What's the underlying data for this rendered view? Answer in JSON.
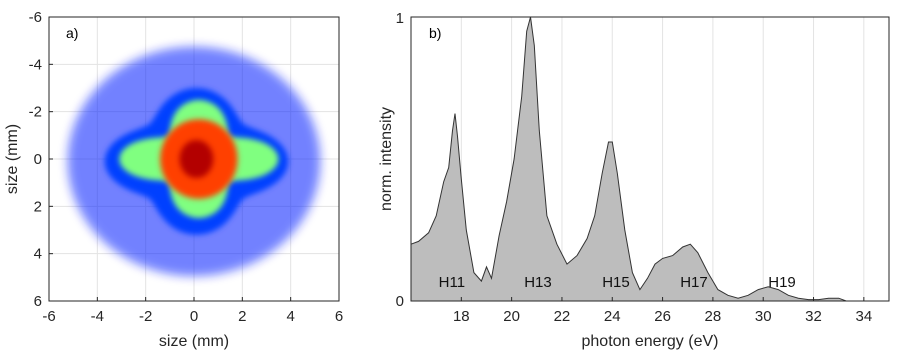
{
  "chart_data": [
    {
      "type": "heatmap",
      "panel_label": "a)",
      "xlabel": "size (mm)",
      "ylabel": "size (mm)",
      "xlim": [
        -6,
        6
      ],
      "ylim": [
        -6,
        6
      ],
      "y_reversed": true,
      "xticks": [
        "-6",
        "-4",
        "-2",
        "0",
        "2",
        "4",
        "6"
      ],
      "yticks": [
        "-6",
        "-4",
        "-2",
        "0",
        "2",
        "4",
        "6"
      ],
      "grid": true,
      "colormap": [
        "#ffffff",
        "#0000ff",
        "#00ffff",
        "#ffff00",
        "#ff0000",
        "#800000"
      ],
      "layers": [
        {
          "level": 0.12,
          "center": [
            0.0,
            0.1
          ],
          "outer_radius_x": 5.5,
          "outer_radius_y": 5.1
        },
        {
          "level": 0.35,
          "center": [
            0.1,
            0.1
          ],
          "star_arm_x": 3.8,
          "star_arm_y": 3.1
        },
        {
          "level": 0.55,
          "center": [
            0.2,
            0.0
          ],
          "star_arm_x": 3.3,
          "star_arm_y": 2.5
        },
        {
          "level": 0.75,
          "center": [
            0.2,
            0.0
          ],
          "radius": 1.6
        },
        {
          "level": 1.0,
          "center": [
            0.1,
            0.0
          ],
          "radius": 0.7
        }
      ]
    },
    {
      "type": "area",
      "panel_label": "b)",
      "xlabel": "photon energy (eV)",
      "ylabel": "norm. intensity",
      "xlim": [
        16,
        35
      ],
      "ylim": [
        0,
        1
      ],
      "xticks": [
        "18",
        "20",
        "22",
        "24",
        "26",
        "28",
        "30",
        "32",
        "34"
      ],
      "yticks": [
        "0",
        "1"
      ],
      "grid": true,
      "fill_color": "#bdbdbd",
      "line_color": "#333333",
      "x": [
        16.0,
        16.3,
        16.7,
        17.0,
        17.3,
        17.5,
        17.65,
        17.75,
        17.85,
        18.0,
        18.2,
        18.5,
        18.8,
        19.0,
        19.2,
        19.5,
        19.8,
        20.1,
        20.4,
        20.6,
        20.75,
        20.9,
        21.1,
        21.4,
        21.8,
        22.2,
        22.6,
        23.0,
        23.3,
        23.6,
        23.85,
        24.0,
        24.2,
        24.5,
        24.8,
        25.1,
        25.4,
        25.7,
        26.0,
        26.4,
        26.8,
        27.1,
        27.4,
        27.8,
        28.2,
        28.6,
        29.0,
        29.4,
        29.8,
        30.2,
        30.6,
        31.0,
        31.4,
        31.8,
        32.2,
        32.6,
        33.0,
        33.3,
        34.0,
        35.0
      ],
      "y": [
        0.2,
        0.21,
        0.24,
        0.3,
        0.42,
        0.47,
        0.6,
        0.66,
        0.58,
        0.43,
        0.25,
        0.1,
        0.07,
        0.12,
        0.08,
        0.23,
        0.35,
        0.5,
        0.72,
        0.95,
        1.0,
        0.9,
        0.6,
        0.3,
        0.2,
        0.13,
        0.16,
        0.22,
        0.3,
        0.45,
        0.56,
        0.56,
        0.45,
        0.25,
        0.1,
        0.04,
        0.08,
        0.13,
        0.15,
        0.16,
        0.19,
        0.2,
        0.17,
        0.1,
        0.04,
        0.02,
        0.01,
        0.02,
        0.04,
        0.05,
        0.04,
        0.02,
        0.01,
        0.005,
        0.005,
        0.01,
        0.01,
        0.0,
        0.0,
        0.0
      ],
      "annotations": [
        {
          "text": "H11",
          "x": 17.1,
          "y": 0.05
        },
        {
          "text": "H13",
          "x": 20.5,
          "y": 0.05
        },
        {
          "text": "H15",
          "x": 23.6,
          "y": 0.05
        },
        {
          "text": "H17",
          "x": 26.7,
          "y": 0.05
        },
        {
          "text": "H19",
          "x": 30.2,
          "y": 0.05
        }
      ]
    }
  ]
}
